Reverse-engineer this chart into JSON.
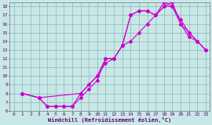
{
  "xlabel": "Windchill (Refroidissement éolien,°C)",
  "xlim": [
    -0.5,
    23.5
  ],
  "ylim": [
    6,
    18.5
  ],
  "xticks": [
    0,
    1,
    2,
    3,
    4,
    5,
    6,
    7,
    8,
    9,
    10,
    11,
    12,
    13,
    14,
    15,
    16,
    17,
    18,
    19,
    20,
    21,
    22,
    23
  ],
  "yticks": [
    6,
    7,
    8,
    9,
    10,
    11,
    12,
    13,
    14,
    15,
    16,
    17,
    18
  ],
  "background_color": "#c8e8e8",
  "line_color": "#cc00cc",
  "grid_color": "#99bbbb",
  "line1_x": [
    1,
    3,
    4,
    5,
    6,
    7,
    8,
    9,
    10,
    11,
    12,
    13,
    14,
    15,
    16,
    17,
    18,
    19,
    20,
    21,
    22,
    23
  ],
  "line1_y": [
    8,
    7.5,
    6.5,
    6.5,
    6.5,
    6.5,
    7.5,
    8.5,
    9.5,
    12,
    12,
    13.5,
    17,
    17.5,
    17.5,
    17,
    18,
    18,
    16.5,
    15,
    14,
    13
  ],
  "line2_x": [
    1,
    3,
    4,
    5,
    6,
    7,
    8,
    9,
    10,
    11,
    12,
    13,
    14,
    15,
    16,
    17,
    18,
    19,
    20,
    21,
    22,
    23
  ],
  "line2_y": [
    8,
    7.5,
    6.5,
    6.5,
    6.5,
    6.5,
    8.0,
    9.0,
    10.0,
    11.5,
    12,
    13.5,
    14,
    15,
    16,
    17,
    18.5,
    18,
    16,
    14.5,
    14,
    13
  ],
  "line3_x": [
    1,
    3,
    8,
    10,
    11,
    12,
    13,
    14,
    15,
    16,
    17,
    18,
    19,
    20,
    21,
    22,
    23
  ],
  "line3_y": [
    8,
    7.5,
    8.0,
    10,
    12,
    12,
    13.5,
    17,
    17.5,
    17.5,
    17,
    18,
    18.5,
    16,
    15,
    14,
    13
  ]
}
